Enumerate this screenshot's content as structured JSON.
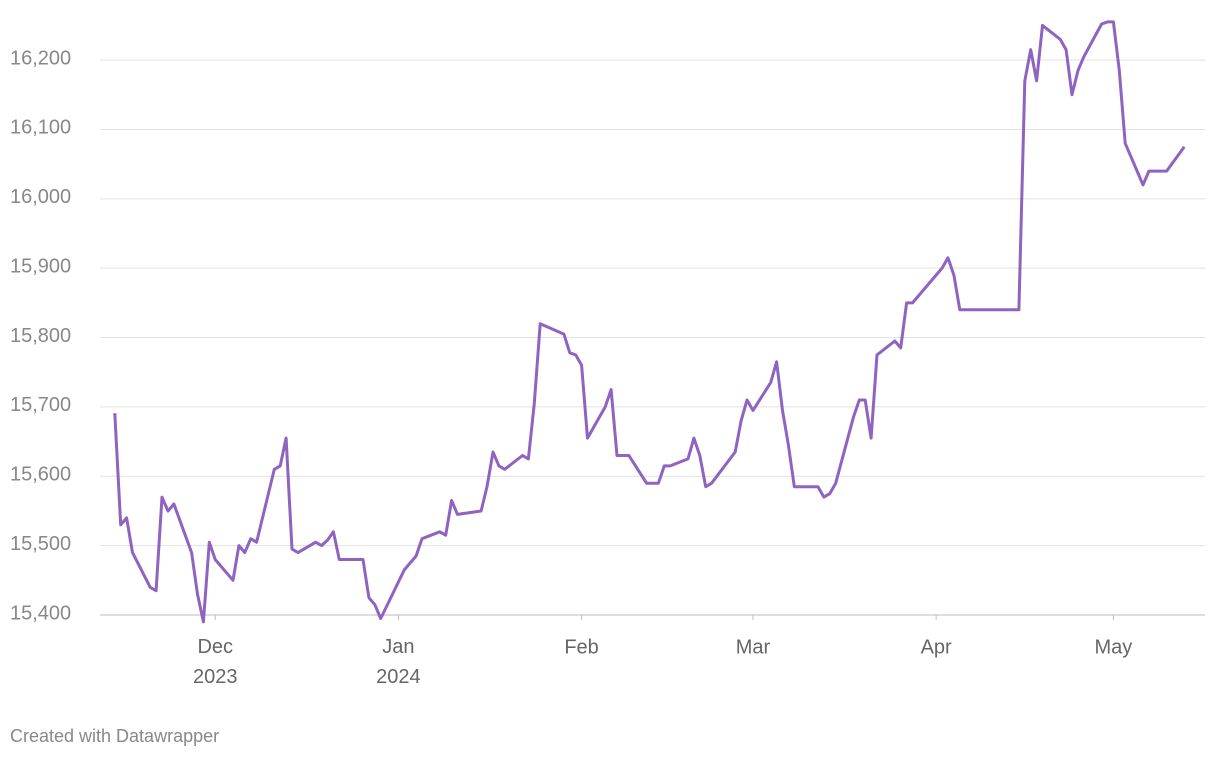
{
  "chart_data": {
    "type": "line",
    "color": "#8f63c0",
    "grid": true,
    "credit": "Created with Datawrapper",
    "x": [
      -17,
      -16,
      -15,
      -14,
      -11,
      -10,
      -9,
      -8,
      -7,
      -4,
      -3,
      -2,
      -1,
      0,
      3,
      4,
      5,
      6,
      7,
      10,
      11,
      12,
      13,
      14,
      17,
      18,
      19,
      20,
      21,
      25,
      26,
      27,
      28,
      32,
      34,
      35,
      38,
      39,
      40,
      41,
      45,
      46,
      47,
      48,
      49,
      52,
      53,
      54,
      55,
      59,
      60,
      61,
      62,
      63,
      66,
      67,
      68,
      70,
      73,
      75,
      76,
      77,
      80,
      81,
      82,
      83,
      84,
      88,
      89,
      90,
      91,
      94,
      95,
      96,
      97,
      98,
      102,
      103,
      104,
      105,
      108,
      109,
      110,
      111,
      112,
      115,
      116,
      117,
      118,
      122,
      123,
      124,
      125,
      126,
      136,
      137,
      138,
      139,
      140,
      143,
      144,
      145,
      146,
      147,
      150,
      151,
      152,
      153,
      154,
      157,
      158,
      161,
      164
    ],
    "values": [
      15691,
      15530,
      15540,
      15490,
      15440,
      15435,
      15570,
      15550,
      15560,
      15490,
      15430,
      15390,
      15505,
      15480,
      15450,
      15500,
      15490,
      15510,
      15505,
      15610,
      15615,
      15655,
      15495,
      15490,
      15505,
      15500,
      15508,
      15520,
      15480,
      15480,
      15425,
      15415,
      15395,
      15465,
      15485,
      15510,
      15520,
      15515,
      15565,
      15545,
      15550,
      15585,
      15635,
      15615,
      15610,
      15630,
      15625,
      15705,
      15820,
      15805,
      15778,
      15775,
      15760,
      15655,
      15700,
      15725,
      15630,
      15630,
      15590,
      15590,
      15615,
      15615,
      15625,
      15655,
      15630,
      15585,
      15590,
      15635,
      15680,
      15710,
      15695,
      15735,
      15765,
      15695,
      15645,
      15585,
      15585,
      15570,
      15575,
      15590,
      15685,
      15710,
      15710,
      15655,
      15775,
      15795,
      15785,
      15850,
      15850,
      15890,
      15900,
      15915,
      15890,
      15840,
      15840,
      16170,
      16215,
      16170,
      16250,
      16230,
      16215,
      16150,
      16185,
      16205,
      16252,
      16255,
      16255,
      16185,
      16080,
      16020,
      16040,
      16040,
      16075
    ],
    "xlim": [
      -19.5,
      167.5
    ],
    "xticks": [
      {
        "value": 0,
        "label": "Dec 2023"
      },
      {
        "value": 31,
        "label": "Jan 2024"
      },
      {
        "value": 62,
        "label": "Feb"
      },
      {
        "value": 91,
        "label": "Mar"
      },
      {
        "value": 122,
        "label": "Apr"
      },
      {
        "value": 152,
        "label": "May"
      }
    ],
    "ylim": [
      15400,
      16265
    ],
    "yticks": [
      {
        "value": 15400,
        "label": "15,400"
      },
      {
        "value": 15500,
        "label": "15,500"
      },
      {
        "value": 15600,
        "label": "15,600"
      },
      {
        "value": 15700,
        "label": "15,700"
      },
      {
        "value": 15800,
        "label": "15,800"
      },
      {
        "value": 15900,
        "label": "15,900"
      },
      {
        "value": 16000,
        "label": "16,000"
      },
      {
        "value": 16100,
        "label": "16,100"
      },
      {
        "value": 16200,
        "label": "16,200"
      }
    ]
  }
}
